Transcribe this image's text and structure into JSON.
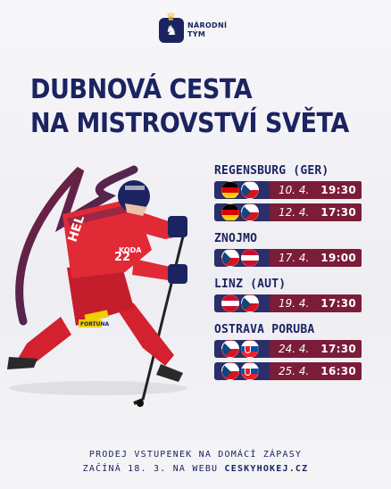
{
  "logo": {
    "line1": "NÁRODNÍ",
    "line2": "TÝM"
  },
  "title": {
    "line1": "DUBNOVÁ CESTA",
    "line2": "NA MISTROVSTVÍ SVĚTA"
  },
  "player": {
    "jersey_name": "HEL",
    "number": "22",
    "sponsor1": "KODA",
    "sponsor2": "FORTUNA"
  },
  "venues": [
    {
      "name": "REGENSBURG (GER)",
      "matches": [
        {
          "flags": [
            "de",
            "cz"
          ],
          "date": "10. 4.",
          "time": "19:30"
        },
        {
          "flags": [
            "de",
            "cz"
          ],
          "date": "12. 4.",
          "time": "17:30"
        }
      ]
    },
    {
      "name": "ZNOJMO",
      "matches": [
        {
          "flags": [
            "cz",
            "at"
          ],
          "date": "17. 4.",
          "time": "19:00"
        }
      ]
    },
    {
      "name": "LINZ (AUT)",
      "matches": [
        {
          "flags": [
            "at",
            "cz"
          ],
          "date": "19. 4.",
          "time": "17:30"
        }
      ]
    },
    {
      "name": "OSTRAVA PORUBA",
      "matches": [
        {
          "flags": [
            "cz",
            "sk"
          ],
          "date": "24. 4.",
          "time": "17:30"
        },
        {
          "flags": [
            "cz",
            "sk"
          ],
          "date": "25. 4.",
          "time": "16:30"
        }
      ]
    }
  ],
  "footer": {
    "line1": "PRODEJ VSTUPENEK NA DOMÁCÍ ZÁPASY",
    "line2_prefix": "ZAČÍNÁ 18. 3. NA WEBU",
    "line2_link": "CESKYHOKEJ.CZ"
  }
}
